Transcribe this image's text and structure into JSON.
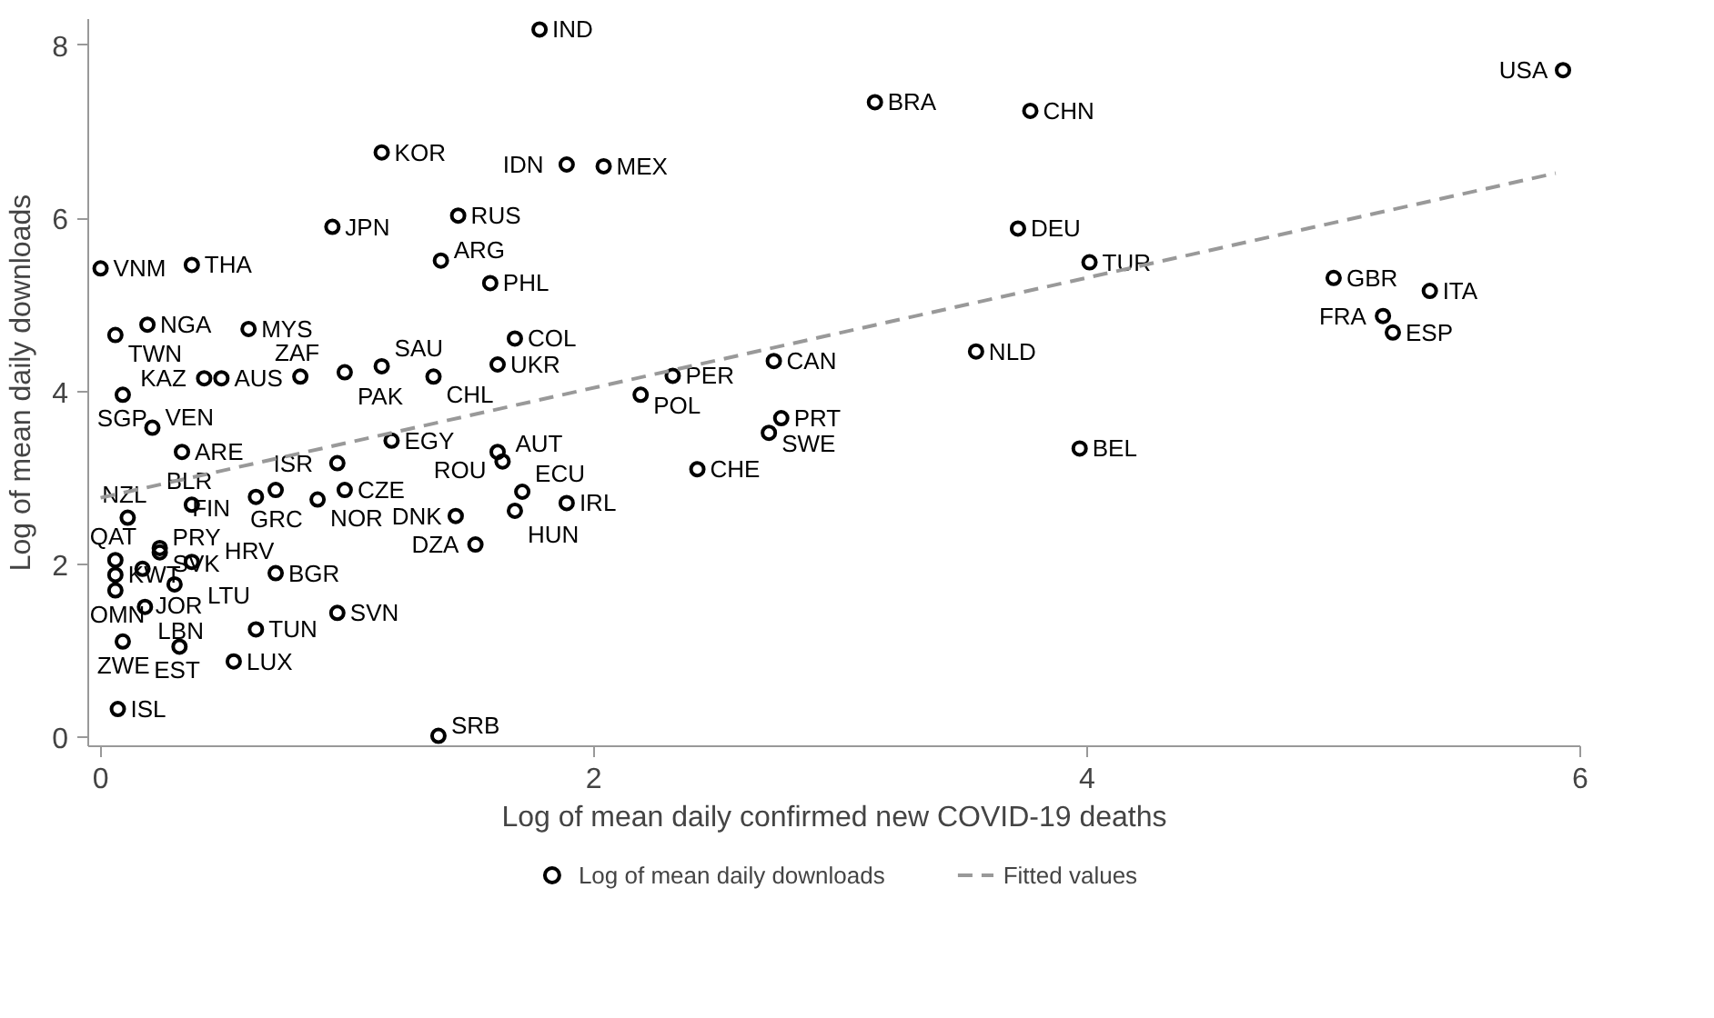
{
  "chart_data": {
    "type": "scatter",
    "xlabel": "Log of mean daily confirmed new COVID-19 deaths",
    "ylabel": "Log of mean daily downloads",
    "xlim": [
      -0.05,
      6.0
    ],
    "ylim": [
      -0.1,
      8.3
    ],
    "xticks": [
      0,
      2,
      4,
      6
    ],
    "yticks": [
      0,
      2,
      4,
      6,
      8
    ],
    "grid": false,
    "legend": "bottom",
    "marker": "circle",
    "series": [
      {
        "name": "Log of mean daily downloads",
        "color": "#000000",
        "x": [
          5.93,
          1.78,
          3.14,
          3.77,
          1.14,
          1.89,
          2.04,
          0.94,
          1.45,
          1.38,
          1.58,
          3.72,
          4.01,
          5.0,
          5.39,
          5.2,
          5.24,
          3.55,
          3.97,
          0.0,
          0.37,
          0.19,
          0.06,
          0.6,
          0.42,
          0.49,
          0.81,
          0.99,
          1.14,
          1.35,
          1.61,
          1.68,
          0.09,
          0.21,
          0.33,
          1.18,
          0.96,
          1.61,
          1.63,
          2.42,
          2.32,
          2.19,
          2.73,
          2.76,
          2.71,
          1.71,
          1.68,
          1.89,
          1.44,
          1.52,
          0.71,
          0.63,
          0.99,
          0.88,
          0.37,
          0.11,
          0.71,
          0.3,
          0.18,
          0.96,
          0.63,
          0.09,
          0.32,
          0.54,
          0.07,
          1.37,
          0.06,
          0.06,
          0.06,
          0.17,
          0.37,
          0.24,
          0.24
        ],
        "values": [
          7.71,
          8.18,
          7.34,
          7.24,
          6.76,
          6.62,
          6.6,
          5.9,
          6.03,
          5.51,
          5.25,
          5.88,
          5.49,
          5.31,
          5.16,
          4.87,
          4.68,
          4.46,
          3.34,
          5.42,
          5.46,
          4.77,
          4.65,
          4.72,
          4.15,
          4.15,
          4.17,
          4.22,
          4.29,
          4.17,
          4.31,
          4.61,
          3.96,
          3.58,
          3.3,
          3.43,
          3.17,
          3.3,
          3.19,
          3.1,
          4.18,
          3.96,
          4.35,
          3.69,
          3.52,
          2.84,
          2.62,
          2.71,
          2.56,
          2.23,
          2.86,
          2.78,
          2.86,
          2.75,
          2.69,
          2.54,
          1.9,
          1.77,
          1.51,
          1.44,
          1.25,
          1.11,
          1.05,
          0.88,
          0.33,
          0.02,
          2.05,
          1.88,
          1.7,
          1.95,
          2.03,
          2.19,
          2.14
        ],
        "value_labels": [
          "USA",
          "IND",
          "BRA",
          "CHN",
          "KOR",
          "IDN",
          "MEX",
          "JPN",
          "RUS",
          "ARG",
          "PHL",
          "DEU",
          "TUR",
          "GBR",
          "ITA",
          "FRA",
          "ESP",
          "NLD",
          "BEL",
          "VNM",
          "THA",
          "NGA",
          "TWN",
          "MYS",
          "KAZ",
          "AUS",
          "ZAF",
          "PAK",
          "SAU",
          "CHL",
          "UKR",
          "COL",
          "SGP",
          "VEN",
          "ARE",
          "EGY",
          "ISR",
          "ROU",
          "AUT",
          "CHE",
          "PER",
          "POL",
          "CAN",
          "PRT",
          "SWE",
          "ECU",
          "HUN",
          "IRL",
          "DNK",
          "DZA",
          "GRC",
          "FIN",
          "CZE",
          "NOR",
          "BLR",
          "NZL",
          "BGR",
          "LTU",
          "LBN",
          "SVN",
          "TUN",
          "ZWE",
          "EST",
          "LUX",
          "ISL",
          "SRB",
          "QAT",
          "KWT",
          "OMN",
          "JOR",
          "HRV",
          "PRY",
          "SVK"
        ]
      },
      {
        "name": "Fitted values",
        "type": "line",
        "color": "#999999",
        "line_style": "dashed",
        "marker": "none",
        "x": [
          0,
          5.9
        ],
        "values": [
          2.77,
          6.52
        ]
      }
    ]
  }
}
